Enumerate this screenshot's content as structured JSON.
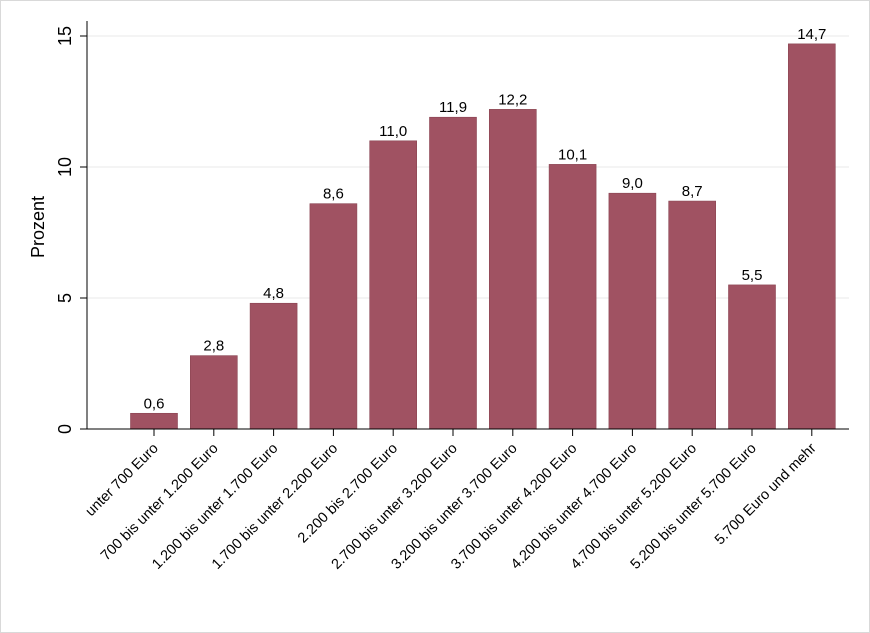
{
  "chart_data": {
    "type": "bar",
    "title": "",
    "xlabel": "",
    "ylabel": "Prozent",
    "ylim": [
      0,
      15
    ],
    "yticks": [
      0,
      5,
      10,
      15
    ],
    "ytick_labels": [
      "0",
      "5",
      "10",
      "15"
    ],
    "grid": true,
    "legend": "none",
    "bar_color": "#a05262",
    "categories": [
      "unter 700 Euro",
      "700 bis unter 1.200 Euro",
      "1.200 bis unter 1.700 Euro",
      "1.700 bis unter 2.200 Euro",
      "2.200 bis 2.700 Euro",
      "2.700 bis unter 3.200 Euro",
      "3.200 bis unter 3.700 Euro",
      "3.700 bis unter 4.200 Euro",
      "4.200 bis unter 4.700 Euro",
      "4.700 bis unter 5.200 Euro",
      "5.200 bis unter 5.700 Euro",
      "5.700 Euro und mehr"
    ],
    "values": [
      0.6,
      2.8,
      4.8,
      8.6,
      11.0,
      11.9,
      12.2,
      10.1,
      9.0,
      8.7,
      5.5,
      14.7
    ],
    "value_labels": [
      "0,6",
      "2,8",
      "4,8",
      "8,6",
      "11,0",
      "11,9",
      "12,2",
      "10,1",
      "9,0",
      "8,7",
      "5,5",
      "14,7"
    ]
  }
}
